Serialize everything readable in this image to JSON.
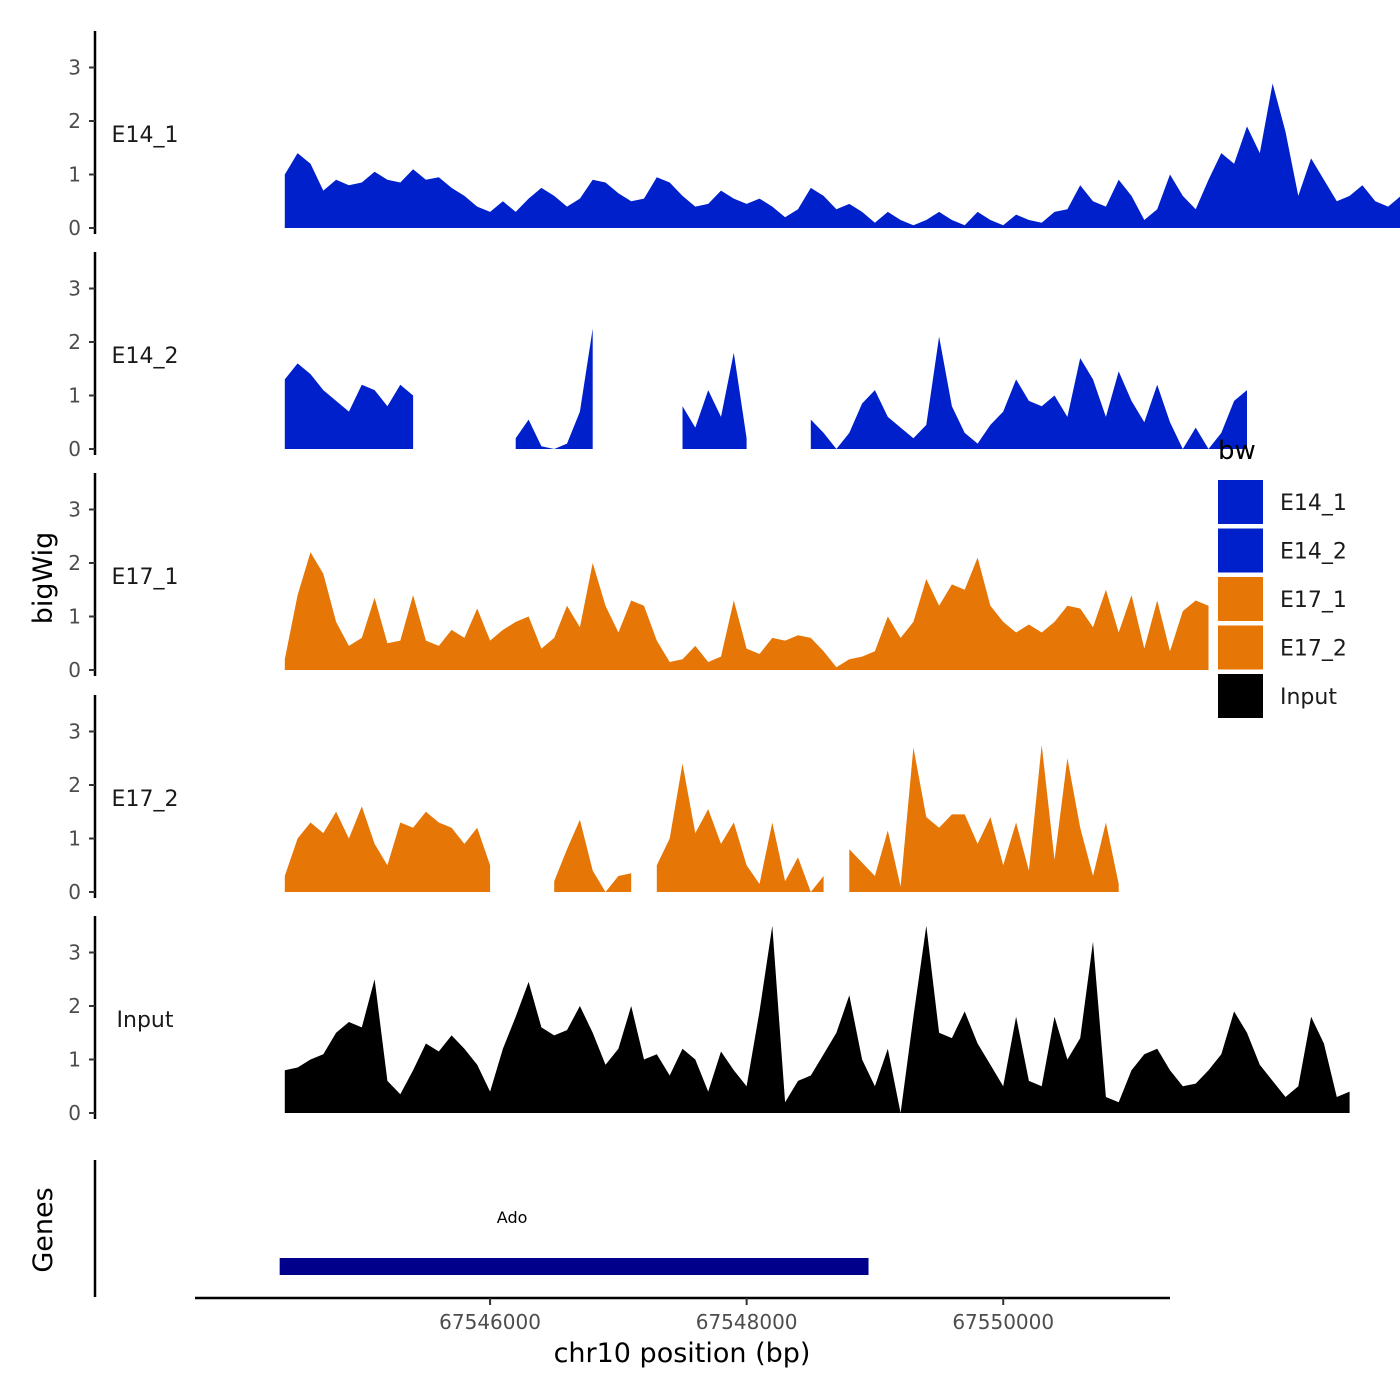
{
  "chart_data": {
    "type": "area",
    "title": "",
    "xlabel": "chr10 position (bp)",
    "ylabel": "bigWig",
    "genes_label": "Genes",
    "xlim": [
      67543700,
      67551300
    ],
    "ylim": [
      0,
      3.6
    ],
    "x_ticks": [
      {
        "value": 67546000,
        "label": "67546000"
      },
      {
        "value": 67548000,
        "label": "67548000"
      },
      {
        "value": 67550000,
        "label": "67550000"
      }
    ],
    "y_ticks": [
      {
        "value": 0,
        "label": "0"
      },
      {
        "value": 1,
        "label": "1"
      },
      {
        "value": 2,
        "label": "2"
      },
      {
        "value": 3,
        "label": "3"
      }
    ],
    "legend": {
      "title": "bw",
      "entries": [
        {
          "label": "E14_1",
          "color": "#0020cc"
        },
        {
          "label": "E14_2",
          "color": "#0020cc"
        },
        {
          "label": "E17_1",
          "color": "#e67606"
        },
        {
          "label": "E17_2",
          "color": "#e67606"
        },
        {
          "label": "Input",
          "color": "#000000"
        }
      ]
    },
    "x_start": 67544400,
    "x_step": 100,
    "series": [
      {
        "name": "E14_1",
        "color": "#0020cc",
        "values": [
          1.0,
          1.4,
          1.2,
          0.7,
          0.9,
          0.8,
          0.85,
          1.05,
          0.9,
          0.85,
          1.1,
          0.9,
          0.95,
          0.75,
          0.6,
          0.4,
          0.3,
          0.5,
          0.3,
          0.55,
          0.75,
          0.6,
          0.4,
          0.55,
          0.9,
          0.85,
          0.65,
          0.5,
          0.55,
          0.95,
          0.85,
          0.6,
          0.4,
          0.45,
          0.7,
          0.55,
          0.45,
          0.55,
          0.4,
          0.2,
          0.35,
          0.75,
          0.6,
          0.35,
          0.45,
          0.3,
          0.1,
          0.3,
          0.15,
          0.05,
          0.15,
          0.3,
          0.15,
          0.05,
          0.3,
          0.15,
          0.05,
          0.25,
          0.15,
          0.1,
          0.3,
          0.35,
          0.8,
          0.5,
          0.4,
          0.9,
          0.6,
          0.15,
          0.35,
          1.0,
          0.6,
          0.35,
          0.9,
          1.4,
          1.2,
          1.9,
          1.4,
          2.7,
          1.8,
          0.6,
          1.3,
          0.9,
          0.5,
          0.6,
          0.8,
          0.5,
          0.4,
          0.6,
          0.7,
          0.55,
          0.45
        ],
        "gaps": [
          [
            67549400,
            67549500
          ]
        ]
      },
      {
        "name": "E14_2",
        "color": "#0020cc",
        "values": [
          1.3,
          1.6,
          1.4,
          1.1,
          0.9,
          0.7,
          1.2,
          1.1,
          0.8,
          1.2,
          1.0,
          0.65,
          0.3,
          0.5,
          0.1,
          0.05,
          0.6,
          0.1,
          0.2,
          0.55,
          0.05,
          0.0,
          0.1,
          0.7,
          2.25,
          0.5,
          0.0,
          0.05,
          0.1,
          0.1,
          1.2,
          0.8,
          0.4,
          1.1,
          0.6,
          1.8,
          0.2,
          0.0,
          0.5,
          2.45,
          0.8,
          0.55,
          0.3,
          0.0,
          0.3,
          0.85,
          1.1,
          0.6,
          0.4,
          0.2,
          0.45,
          2.1,
          0.8,
          0.3,
          0.1,
          0.45,
          0.7,
          1.3,
          0.9,
          0.8,
          1.0,
          0.6,
          1.7,
          1.3,
          0.6,
          1.45,
          0.9,
          0.5,
          1.2,
          0.5,
          0.0,
          0.4,
          0.0,
          0.3,
          0.9,
          1.1
        ],
        "gaps": [
          [
            67545400,
            67546200
          ],
          [
            67546800,
            67547500
          ],
          [
            67548000,
            67548500
          ]
        ]
      },
      {
        "name": "E17_1",
        "color": "#e67606",
        "values": [
          0.2,
          1.4,
          2.2,
          1.8,
          0.9,
          0.45,
          0.6,
          1.35,
          0.5,
          0.55,
          1.4,
          0.55,
          0.45,
          0.75,
          0.6,
          1.15,
          0.55,
          0.75,
          0.9,
          1.0,
          0.4,
          0.6,
          1.2,
          0.8,
          2.0,
          1.2,
          0.7,
          1.3,
          1.2,
          0.55,
          0.15,
          0.2,
          0.45,
          0.15,
          0.25,
          1.3,
          0.4,
          0.3,
          0.6,
          0.55,
          0.65,
          0.6,
          0.35,
          0.05,
          0.2,
          0.25,
          0.35,
          1.0,
          0.6,
          0.9,
          1.7,
          1.2,
          1.6,
          1.5,
          2.1,
          1.2,
          0.9,
          0.7,
          0.85,
          0.7,
          0.9,
          1.2,
          1.15,
          0.8,
          1.5,
          0.7,
          1.4,
          0.4,
          1.3,
          0.35,
          1.1,
          1.3,
          1.2
        ],
        "gaps": []
      },
      {
        "name": "E17_2",
        "color": "#e67606",
        "values": [
          0.3,
          1.0,
          1.3,
          1.1,
          1.5,
          1.0,
          1.6,
          0.9,
          0.5,
          1.3,
          1.2,
          1.5,
          1.3,
          1.2,
          0.9,
          1.2,
          0.5,
          0.35,
          0.1,
          0.6,
          0.1,
          0.2,
          0.8,
          1.35,
          0.4,
          0.0,
          0.3,
          0.35,
          0.2,
          0.5,
          1.0,
          2.4,
          1.1,
          1.55,
          0.9,
          1.3,
          0.5,
          0.15,
          1.3,
          0.2,
          0.65,
          0.0,
          0.3,
          0.5,
          0.8,
          0.55,
          0.3,
          1.15,
          0.1,
          2.7,
          1.4,
          1.2,
          1.45,
          1.45,
          0.9,
          1.4,
          0.5,
          1.3,
          0.4,
          2.75,
          0.6,
          2.5,
          1.2,
          0.3,
          1.3,
          0.15
        ],
        "gaps": [
          [
            67546000,
            67546500
          ],
          [
            67547100,
            67547300
          ],
          [
            67548600,
            67548800
          ]
        ]
      },
      {
        "name": "Input",
        "color": "#000000",
        "values": [
          0.8,
          0.85,
          1.0,
          1.1,
          1.5,
          1.7,
          1.6,
          2.5,
          0.6,
          0.35,
          0.8,
          1.3,
          1.15,
          1.45,
          1.2,
          0.9,
          0.4,
          1.2,
          1.8,
          2.45,
          1.6,
          1.45,
          1.55,
          2.0,
          1.5,
          0.9,
          1.2,
          2.0,
          1.0,
          1.1,
          0.7,
          1.2,
          1.0,
          0.4,
          1.15,
          0.8,
          0.5,
          1.9,
          3.5,
          0.2,
          0.6,
          0.7,
          1.1,
          1.5,
          2.2,
          1.0,
          0.5,
          1.2,
          0.0,
          1.8,
          3.5,
          1.5,
          1.4,
          1.9,
          1.3,
          0.9,
          0.5,
          1.8,
          0.6,
          0.5,
          1.8,
          1.0,
          1.4,
          3.2,
          0.3,
          0.2,
          0.8,
          1.1,
          1.2,
          0.8,
          0.5,
          0.55,
          0.8,
          1.1,
          1.9,
          1.5,
          0.9,
          0.6,
          0.3,
          0.5,
          1.8,
          1.3,
          0.3,
          0.4
        ],
        "gaps": [
          [
            67548300,
            67548350
          ]
        ]
      }
    ],
    "genes": [
      {
        "name": "Ado",
        "start": 67544360,
        "end": 67548950,
        "color": "#00008b"
      }
    ]
  }
}
